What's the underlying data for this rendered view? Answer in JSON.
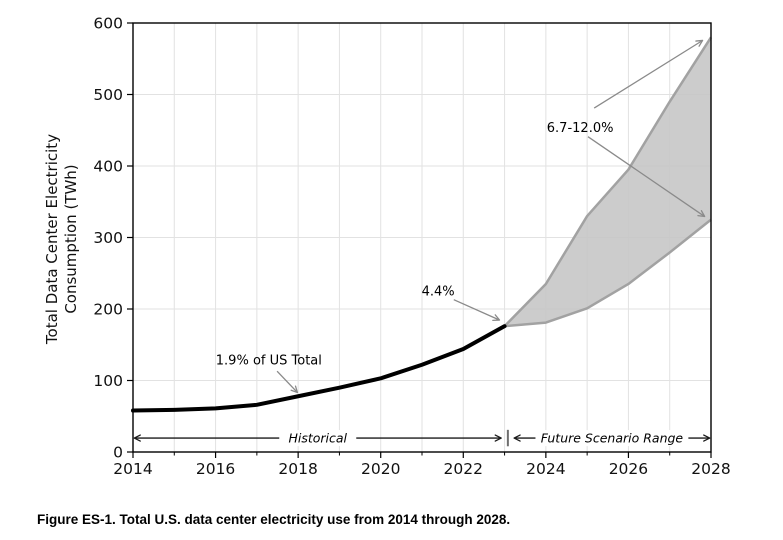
{
  "figure": {
    "caption": "Figure ES-1. Total U.S. data center electricity use from 2014 through 2028."
  },
  "chart_data": {
    "type": "area",
    "title": "",
    "xlabel": "",
    "ylabel_line1": "Total Data Center Electricity",
    "ylabel_line2": "Consumption (TWh)",
    "xlim": [
      2014,
      2028
    ],
    "ylim": [
      0,
      600
    ],
    "x_major_ticks": [
      2014,
      2016,
      2018,
      2020,
      2022,
      2024,
      2026,
      2028
    ],
    "x_minor_ticks": [
      2015,
      2017,
      2019,
      2021,
      2023,
      2025,
      2027
    ],
    "y_ticks": [
      0,
      100,
      200,
      300,
      400,
      500,
      600
    ],
    "grid": true,
    "legend": "none",
    "series": [
      {
        "name": "Historical",
        "type": "line",
        "color": "#000000",
        "x": [
          2014,
          2015,
          2016,
          2017,
          2018,
          2019,
          2020,
          2021,
          2022,
          2023
        ],
        "values": [
          58,
          59,
          61,
          66,
          78,
          90,
          103,
          122,
          144,
          176
        ]
      },
      {
        "name": "Future Scenario Range",
        "type": "band",
        "fill": "#c6c6c6",
        "edge": "#a2a2a2",
        "x": [
          2023,
          2024,
          2025,
          2026,
          2027,
          2028
        ],
        "upper": [
          176,
          235,
          330,
          395,
          490,
          580
        ],
        "lower": [
          176,
          181,
          201,
          235,
          279,
          325
        ]
      }
    ],
    "annotations": [
      {
        "id": "share-2018",
        "text": "1.9% of US Total",
        "tx": 2017.29,
        "ty": 129,
        "arrows": [
          {
            "x1": 2017.49,
            "y1": 113,
            "x2": 2017.97,
            "y2": 84
          }
        ]
      },
      {
        "id": "share-2023",
        "text": "4.4%",
        "tx": 2021.39,
        "ty": 225,
        "arrows": [
          {
            "x1": 2021.77,
            "y1": 213,
            "x2": 2022.86,
            "y2": 185
          }
        ]
      },
      {
        "id": "share-2028",
        "text": "6.7-12.0%",
        "tx": 2024.83,
        "ty": 454,
        "arrows": [
          {
            "x1": 2025.17,
            "y1": 481,
            "x2": 2027.78,
            "y2": 575
          },
          {
            "x1": 2025.02,
            "y1": 441,
            "x2": 2027.83,
            "y2": 330
          }
        ]
      }
    ],
    "span_labels": [
      {
        "id": "historical-span",
        "text": "Historical",
        "x1": 2014.05,
        "x2": 2022.9,
        "y": 19.5
      },
      {
        "id": "future-span",
        "text": "Future Scenario Range",
        "x1": 2023.25,
        "x2": 2027.95,
        "y": 19.5
      }
    ],
    "divider": {
      "x": 2023.08,
      "y1": 31,
      "y2": 8
    },
    "colors": {
      "gridline": "#e2e2e2",
      "axis": "#000000",
      "annotation_arrow": "#8a8a8a",
      "span_arrow": "#1a1a1a",
      "divider": "#6e6e6e",
      "background": "#ffffff"
    }
  }
}
